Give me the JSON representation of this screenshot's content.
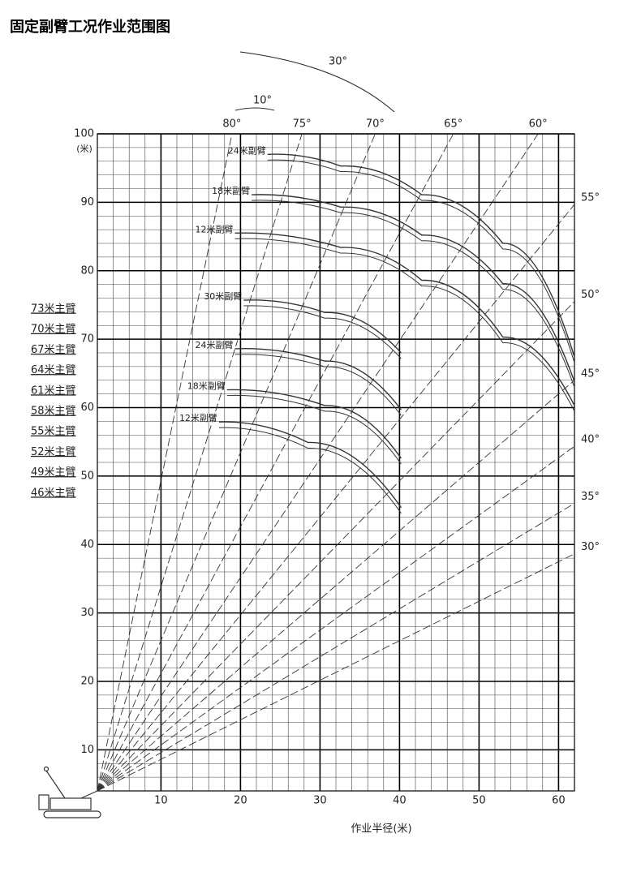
{
  "chart_data": {
    "type": "range-diagram",
    "title": "固定副臂工况作业范围图",
    "x_label": "作业半径(米)",
    "y_unit": "(米)",
    "xlim": [
      2,
      62
    ],
    "ylim": [
      4,
      100
    ],
    "xticks": [
      10,
      20,
      30,
      40,
      50,
      60
    ],
    "yticks": [
      10,
      20,
      30,
      40,
      50,
      60,
      70,
      80,
      90,
      100
    ],
    "grid": true,
    "minor_grid_step": 2,
    "angle_lines": [
      {
        "value": 80,
        "label": "80°"
      },
      {
        "value": 75,
        "label": "75°"
      },
      {
        "value": 70,
        "label": "70°"
      },
      {
        "value": 65,
        "label": "65°"
      },
      {
        "value": 60,
        "label": "60°"
      },
      {
        "value": 55,
        "label": "55°"
      },
      {
        "value": 50,
        "label": "50°"
      },
      {
        "value": 45,
        "label": "45°"
      },
      {
        "value": 40,
        "label": "40°"
      },
      {
        "value": 35,
        "label": "35°"
      },
      {
        "value": 30,
        "label": "30°"
      }
    ],
    "jib_offsets": [
      {
        "value": 10,
        "label": "10°"
      },
      {
        "value": 30,
        "label": "30°"
      }
    ],
    "boom_lengths": [
      "73米主臂",
      "70米主臂",
      "67米主臂",
      "64米主臂",
      "61米主臂",
      "58米主臂",
      "55米主臂",
      "52米主臂",
      "49米主臂",
      "46米主臂"
    ],
    "series": [
      {
        "name": "24米副臂",
        "color": "#333333",
        "x": [
          23.4,
          32.6,
          42.8,
          53.0,
          62.0
        ],
        "values": [
          97.0,
          95.3,
          91.1,
          84.0,
          67.4
        ]
      },
      {
        "name": "18米副臂",
        "color": "#333333",
        "x": [
          21.4,
          32.6,
          42.8,
          53.0,
          62.0
        ],
        "values": [
          91.1,
          89.3,
          85.2,
          78.1,
          63.8
        ]
      },
      {
        "name": "12米副臂",
        "color": "#333333",
        "x": [
          19.3,
          32.6,
          42.8,
          53.0,
          62.0
        ],
        "values": [
          85.5,
          83.4,
          78.6,
          70.3,
          60.3
        ]
      },
      {
        "name": "30米副臂",
        "color": "#333333",
        "x": [
          20.4,
          30.6,
          40.2
        ],
        "values": [
          75.7,
          73.9,
          68.0
        ]
      },
      {
        "name": "24米副臂",
        "color": "#333333",
        "x": [
          19.3,
          30.6,
          40.2
        ],
        "values": [
          68.6,
          66.8,
          59.7
        ]
      },
      {
        "name": "18米副臂",
        "color": "#333333",
        "x": [
          18.3,
          30.6,
          40.2
        ],
        "values": [
          62.6,
          60.3,
          52.6
        ]
      },
      {
        "name": "12米副臂",
        "color": "#333333",
        "x": [
          17.3,
          28.5,
          40.2
        ],
        "values": [
          57.9,
          54.9,
          45.4
        ]
      }
    ]
  }
}
